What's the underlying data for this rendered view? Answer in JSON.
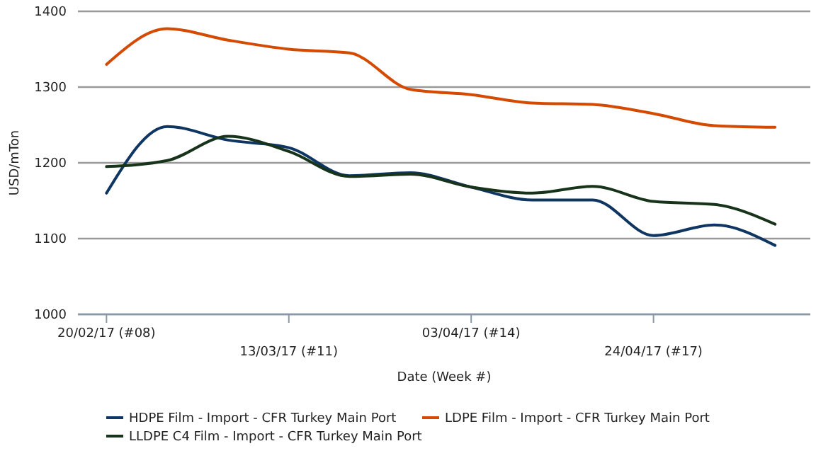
{
  "chart_data": {
    "type": "line",
    "xlabel": "Date (Week #)",
    "ylabel": "USD/mTon",
    "categories": [
      "20/02/17 (#08)",
      null,
      null,
      "13/03/17 (#11)",
      null,
      null,
      "03/04/17 (#14)",
      null,
      null,
      "24/04/17 (#17)",
      null,
      null
    ],
    "ylim": [
      1000,
      1400
    ],
    "yticks": [
      1000,
      1100,
      1200,
      1300,
      1400
    ],
    "grid": "y",
    "legend": "bottom",
    "marker": "none",
    "line_style": "solid",
    "series": [
      {
        "name": "HDPE Film - Import - CFR Turkey Main Port",
        "color": "#0f3563",
        "values": [
          1160,
          1248,
          1230,
          1220,
          1183,
          1187,
          1168,
          1151,
          1151,
          1104,
          1118,
          1091
        ]
      },
      {
        "name": "LDPE Film - Import - CFR Turkey Main Port",
        "color": "#d44a00",
        "values": [
          1330,
          1377,
          1362,
          1350,
          1345,
          1297,
          1290,
          1279,
          1277,
          1265,
          1249,
          1247
        ]
      },
      {
        "name": "LLDPE C4 Film - Import - CFR Turkey Main Port",
        "color": "#17331a",
        "values": [
          1195,
          1203,
          1235,
          1215,
          1182,
          1185,
          1168,
          1160,
          1169,
          1149,
          1145,
          1119
        ]
      }
    ]
  }
}
